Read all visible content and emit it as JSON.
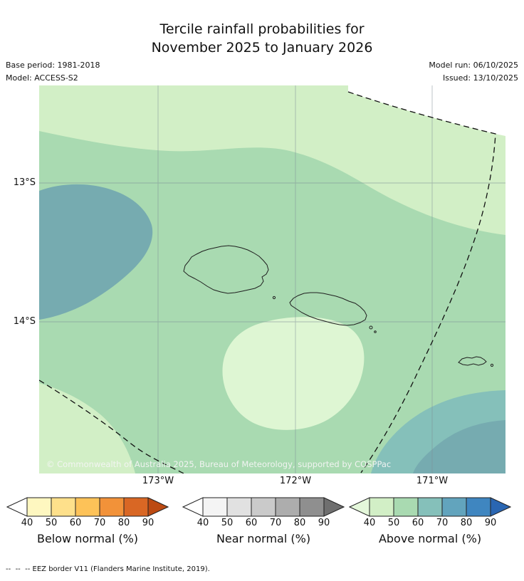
{
  "title": {
    "line1": "Tercile rainfall probabilities for",
    "line2": "November 2025 to January 2026"
  },
  "meta": {
    "base_period": "Base period: 1981-2018",
    "model": "Model: ACCESS-S2",
    "model_run": "Model run: 06/10/2025",
    "issued": "Issued: 13/10/2025"
  },
  "map": {
    "lat_labels": [
      "13°S",
      "14°S"
    ],
    "lon_labels": [
      "173°W",
      "172°W",
      "171°W"
    ],
    "copyright": "© Commonwealth of Australia 2025, Bureau of Meteorology, supported by COSPPac",
    "region_colors": {
      "pale_green": "#def6d3",
      "light_green": "#d2efc6",
      "mid_green": "#a9dab1",
      "teal": "#85c0ba",
      "dark_teal": "#76abb0",
      "white": "#ffffff"
    }
  },
  "legends": [
    {
      "title": "Below normal (%)",
      "ticks": [
        "40",
        "50",
        "60",
        "70",
        "80",
        "90"
      ],
      "arrow_left": "#ffffff",
      "cells": [
        "#fef7c0",
        "#fee08b",
        "#fdc258",
        "#f29239",
        "#d96724"
      ],
      "arrow_right": "#bc4a12"
    },
    {
      "title": "Near normal (%)",
      "ticks": [
        "40",
        "50",
        "60",
        "70",
        "80",
        "90"
      ],
      "arrow_left": "#ffffff",
      "cells": [
        "#f4f4f4",
        "#e1e1e1",
        "#cacaca",
        "#adadad",
        "#8f8f8f"
      ],
      "arrow_right": "#6f6f6f"
    },
    {
      "title": "Above normal (%)",
      "ticks": [
        "40",
        "50",
        "60",
        "70",
        "80",
        "90"
      ],
      "arrow_left": "#e4f7da",
      "cells": [
        "#d2efc6",
        "#a9dab1",
        "#85c0ba",
        "#62a4bd",
        "#3f86c0"
      ],
      "arrow_right": "#2a66b2"
    }
  ],
  "footnote": "--  --  -- EEZ border V11 (Flanders Marine Institute, 2019)."
}
